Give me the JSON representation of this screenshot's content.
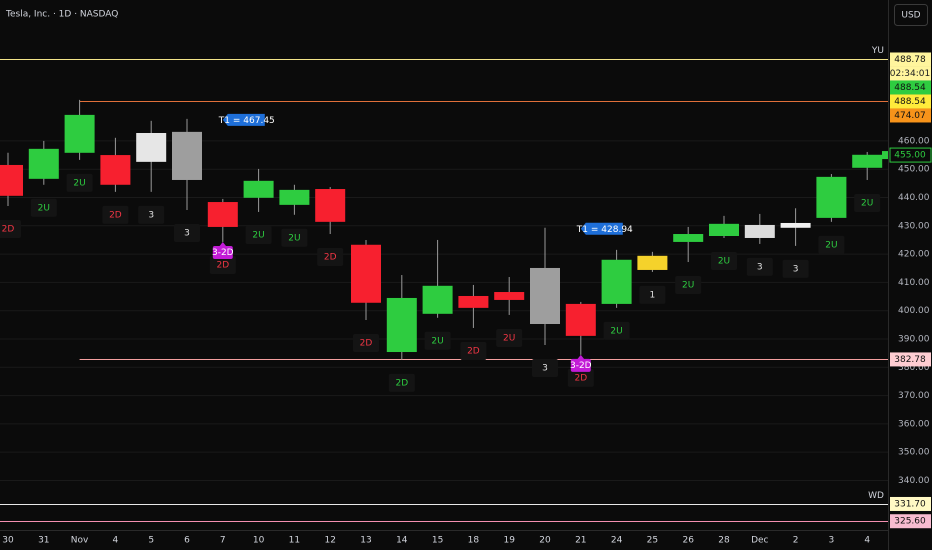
{
  "chart_data": {
    "type": "candlestick",
    "title": "Tesla, Inc. · 1D · NASDAQ",
    "currency": "USD",
    "categories": [
      "30",
      "31",
      "Nov",
      "4",
      "5",
      "6",
      "7",
      "10",
      "11",
      "12",
      "13",
      "14",
      "15",
      "18",
      "19",
      "20",
      "21",
      "24",
      "25",
      "26",
      "28",
      "Dec",
      "2",
      "3",
      "4"
    ],
    "open": [
      451.5,
      446.6,
      455.8,
      455.0,
      462.8,
      463.2,
      438.4,
      439.9,
      437.4,
      443.0,
      423.3,
      385.4,
      398.9,
      405.2,
      406.6,
      415.1,
      402.4,
      402.4,
      419.4,
      424.3,
      426.4,
      430.3,
      431.0,
      432.8,
      450.5
    ],
    "close": [
      440.6,
      457.2,
      469.2,
      444.5,
      452.6,
      446.2,
      429.6,
      445.9,
      442.7,
      431.4,
      402.8,
      404.5,
      408.8,
      401.0,
      403.8,
      395.3,
      391.1,
      418.0,
      414.4,
      427.1,
      430.7,
      425.7,
      429.3,
      447.3,
      455.1
    ],
    "high": [
      455.8,
      460.0,
      474.5,
      461.1,
      467.1,
      467.8,
      439.5,
      450.1,
      444.5,
      443.7,
      425.0,
      412.6,
      425.0,
      409.1,
      411.9,
      429.3,
      403.1,
      421.5,
      420.8,
      429.6,
      433.5,
      434.2,
      436.2,
      448.3,
      456.1
    ],
    "low": [
      437.0,
      444.5,
      453.3,
      442.0,
      442.0,
      435.6,
      424.3,
      434.9,
      433.9,
      427.1,
      396.7,
      382.6,
      397.5,
      393.9,
      398.5,
      387.9,
      384.4,
      401.0,
      413.7,
      417.2,
      425.7,
      423.6,
      422.9,
      431.4,
      446.2
    ],
    "colors": [
      "#f7202f",
      "#2ecc40",
      "#2ecc40",
      "#f7202f",
      "#e6e6e6",
      "#9e9e9e",
      "#f7202f",
      "#2ecc40",
      "#2ecc40",
      "#f7202f",
      "#f7202f",
      "#2ecc40",
      "#2ecc40",
      "#f7202f",
      "#f7202f",
      "#9e9e9e",
      "#f7202f",
      "#2ecc40",
      "#f5d22b",
      "#2ecc40",
      "#2ecc40",
      "#dcdcdc",
      "#f0f0f0",
      "#2ecc40",
      "#2ecc40"
    ],
    "pattern_labels": [
      "2D",
      "2U",
      "2U",
      "2D",
      "3",
      "3",
      "2D",
      "2U",
      "2U",
      "2D",
      "2D",
      "2D",
      "2U",
      "2D",
      "2U",
      "3",
      "2D",
      "2U",
      "1",
      "2U",
      "2U",
      "3",
      "3",
      "2U",
      "2U"
    ],
    "label_colors": [
      "#f23645",
      "#2ecc40",
      "#2ecc40",
      "#f23645",
      "#e0e0e0",
      "#e0e0e0",
      "#f23645",
      "#2ecc40",
      "#2ecc40",
      "#f23645",
      "#f23645",
      "#2ecc40",
      "#2ecc40",
      "#f23645",
      "#f23645",
      "#e0e0e0",
      "#f23645",
      "#2ecc40",
      "#e0e0e0",
      "#2ecc40",
      "#2ecc40",
      "#e0e0e0",
      "#e0e0e0",
      "#2ecc40",
      "#2ecc40"
    ],
    "tags": [
      {
        "category": "7",
        "text": "3-2D",
        "color": "#c21bd6"
      },
      {
        "category": "21",
        "text": "3-2D",
        "color": "#c21bd6"
      }
    ],
    "annotations": [
      {
        "text": "T1 = 467.45",
        "value": 467.45,
        "category": "7",
        "color": "#1e6fd9"
      },
      {
        "text": "T1 = 428.94",
        "value": 428.94,
        "category": "21",
        "color": "#1e6fd9"
      }
    ],
    "levels": [
      {
        "value": 488.78,
        "label": "488.78",
        "color": "#f3e58a",
        "tag": "#fff59d",
        "name": "YU",
        "countdown": "02:34:01"
      },
      {
        "value": 474.07,
        "label": "474.07",
        "color": "#e0703a",
        "tag": "#f7931a",
        "from": "Nov"
      },
      {
        "value": 382.78,
        "label": "382.78",
        "color": "#f4a0a0",
        "tag": "#ffcdd2",
        "from": "Nov"
      },
      {
        "value": 331.7,
        "label": "331.70",
        "color": "#e8e8e8",
        "tag": "#fff9c4",
        "name": "WD"
      },
      {
        "value": 325.6,
        "label": "325.60",
        "color": "#f48fb1",
        "tag": "#f8bbd0"
      }
    ],
    "markers": [
      {
        "value": 488.54,
        "label": "488.54",
        "tag": "#2ecc40"
      },
      {
        "value": 488.54,
        "label": "488.54",
        "tag": "#ffeb3b"
      },
      {
        "value": 455.0,
        "label": "455.00",
        "outline": "#2ecc40"
      }
    ],
    "ylim": [
      322.5,
      509.8
    ],
    "yticks": [
      {
        "value": 460,
        "label": "460.00"
      },
      {
        "value": 450,
        "label": "450.00"
      },
      {
        "value": 440,
        "label": "440.00"
      },
      {
        "value": 430,
        "label": "430.00"
      },
      {
        "value": 420,
        "label": "420.00"
      },
      {
        "value": 410,
        "label": "410.00"
      },
      {
        "value": 400,
        "label": "400.00"
      },
      {
        "value": 390,
        "label": "390.00"
      },
      {
        "value": 380,
        "label": "380.00"
      },
      {
        "value": 370,
        "label": "370.00"
      },
      {
        "value": 360,
        "label": "360.00"
      },
      {
        "value": 350,
        "label": "350.00"
      },
      {
        "value": 340,
        "label": "340.00"
      }
    ],
    "grid": true
  }
}
